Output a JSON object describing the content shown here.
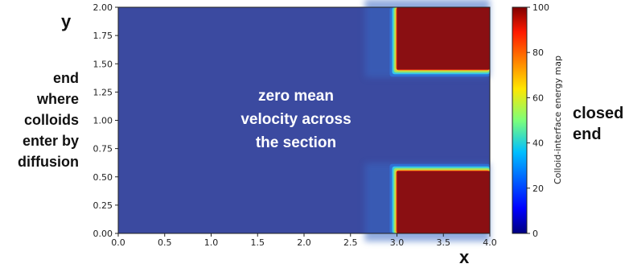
{
  "chart_data": {
    "type": "heatmap",
    "title": "",
    "xlabel": "x",
    "ylabel": "y",
    "xlim": [
      0.0,
      4.0
    ],
    "ylim": [
      0.0,
      2.0
    ],
    "x_ticks": [
      "0.0",
      "0.5",
      "1.0",
      "1.5",
      "2.0",
      "2.5",
      "3.0",
      "3.5",
      "4.0"
    ],
    "y_ticks": [
      "0.00",
      "0.25",
      "0.50",
      "0.75",
      "1.00",
      "1.25",
      "1.50",
      "1.75",
      "2.00"
    ],
    "colorbar": {
      "label": "Colloid-interface energy map",
      "range": [
        0,
        100
      ],
      "ticks": [
        "0",
        "20",
        "40",
        "60",
        "80",
        "100"
      ],
      "colormap": "jet"
    },
    "regions": [
      {
        "x": [
          3.0,
          4.0
        ],
        "y": [
          1.45,
          2.0
        ],
        "value": 100
      },
      {
        "x": [
          3.0,
          4.0
        ],
        "y": [
          0.0,
          0.55
        ],
        "value": 100
      }
    ],
    "background_value": 0
  },
  "annotations": {
    "center_lines": [
      "zero mean",
      "velocity across",
      "the section"
    ],
    "left_lines": [
      "end",
      "where",
      "colloids",
      "enter by",
      "diffusion"
    ],
    "right_lines": [
      "closed",
      "end"
    ]
  }
}
